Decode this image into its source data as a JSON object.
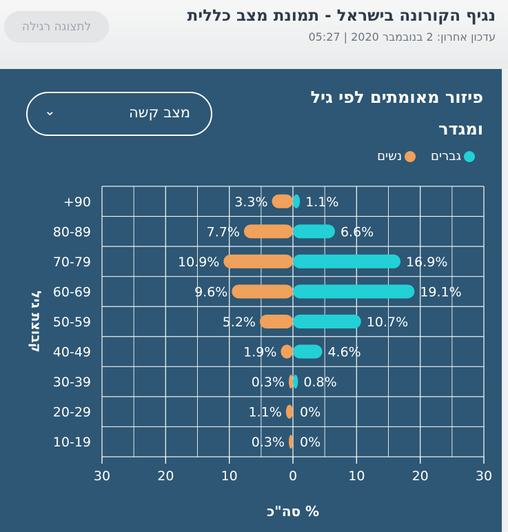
{
  "header": {
    "title": "נגיף הקורונה בישראל - תמונת מצב כללית",
    "updated": "עדכון אחרון: 2 בנובמבר 2020 | 05:27",
    "view_button": "לתצוגה רגילה"
  },
  "panel": {
    "title": "פיזור מאומתים לפי גיל ומגדר",
    "select_value": "מצב קשה"
  },
  "colors": {
    "men": "#22d0d6",
    "women": "#f0a15b",
    "panel_bg": "#2d5774",
    "grid": "#ffffff"
  },
  "chart_data": {
    "type": "bar",
    "orientation": "horizontal",
    "categories": [
      "+90",
      "80-89",
      "70-79",
      "60-69",
      "50-59",
      "40-49",
      "30-39",
      "20-29",
      "10-19"
    ],
    "series": [
      {
        "name": "גברים",
        "color": "#22d0d6",
        "values": [
          1.1,
          6.6,
          16.9,
          19.1,
          10.7,
          4.6,
          0.8,
          0,
          0
        ],
        "labels": [
          "1.1%",
          "6.6%",
          "16.9%",
          "19.1%",
          "10.7%",
          "4.6%",
          "0.8%",
          "0%",
          "0%"
        ]
      },
      {
        "name": "נשים",
        "color": "#f0a15b",
        "values": [
          3.3,
          7.7,
          10.9,
          9.6,
          5.2,
          1.9,
          0.3,
          1.1,
          0.3
        ],
        "labels": [
          "3.3%",
          "7.7%",
          "10.9%",
          "9.6%",
          "5.2%",
          "1.9%",
          "0.3%",
          "1.1%",
          "0.3%"
        ]
      }
    ],
    "xticks": [
      "30",
      "20",
      "10",
      "0",
      "10",
      "20",
      "30"
    ],
    "xlim": [
      -30,
      30
    ],
    "xlabel": "% סה\"כ",
    "ylabel": "קבוצת גיל",
    "grid": true,
    "legend": "top-right"
  }
}
